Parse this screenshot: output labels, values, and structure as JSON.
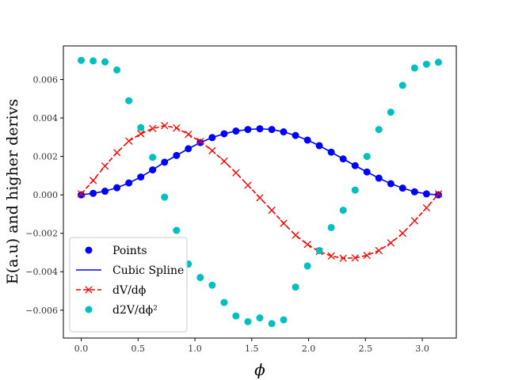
{
  "chart_data": {
    "type": "line",
    "title": "",
    "xlabel": "ϕ",
    "ylabel": "E(a.u) and higher derivs",
    "xlim": [
      -0.157,
      3.299
    ],
    "ylim": [
      -0.00745,
      0.00775
    ],
    "xticks": [
      0.0,
      0.5,
      1.0,
      1.5,
      2.0,
      2.5,
      3.0
    ],
    "xtick_labels": [
      "0.0",
      "0.5",
      "1.0",
      "1.5",
      "2.0",
      "2.5",
      "3.0"
    ],
    "yticks": [
      -0.006,
      -0.004,
      -0.002,
      0.0,
      0.002,
      0.004,
      0.006
    ],
    "ytick_labels": [
      "−0.006",
      "−0.004",
      "−0.002",
      "0.000",
      "0.002",
      "0.004",
      "0.006"
    ],
    "grid": false,
    "legend_position": "lower-left",
    "x": [
      0.0,
      0.105,
      0.209,
      0.314,
      0.419,
      0.524,
      0.628,
      0.733,
      0.838,
      0.942,
      1.047,
      1.152,
      1.257,
      1.361,
      1.466,
      1.571,
      1.676,
      1.78,
      1.885,
      1.99,
      2.094,
      2.199,
      2.304,
      2.409,
      2.513,
      2.618,
      2.723,
      2.827,
      2.932,
      3.037,
      3.142
    ],
    "series": [
      {
        "name": "Points",
        "kind": "markers",
        "marker": "circle",
        "color": "#0000ff",
        "values": [
          0.0,
          8e-05,
          0.00019,
          0.00037,
          0.00062,
          0.00093,
          0.0013,
          0.0017,
          0.00205,
          0.0024,
          0.00272,
          0.00298,
          0.00318,
          0.00332,
          0.0034,
          0.00344,
          0.0034,
          0.00328,
          0.00309,
          0.00285,
          0.00256,
          0.00222,
          0.00187,
          0.00152,
          0.00119,
          0.00087,
          0.00058,
          0.00035,
          0.00016,
          5e-05,
          0.0
        ]
      },
      {
        "name": "Cubic Spline",
        "kind": "line",
        "color": "#0000ff",
        "values": [
          0.0,
          8e-05,
          0.00019,
          0.00037,
          0.00062,
          0.00093,
          0.0013,
          0.0017,
          0.00205,
          0.0024,
          0.00272,
          0.00298,
          0.00318,
          0.00332,
          0.0034,
          0.00344,
          0.0034,
          0.00328,
          0.00309,
          0.00285,
          0.00256,
          0.00222,
          0.00187,
          0.00152,
          0.00119,
          0.00087,
          0.00058,
          0.00035,
          0.00016,
          5e-05,
          0.0
        ]
      },
      {
        "name": "dV/dϕ",
        "kind": "dashed-line-x",
        "color": "#ff0000",
        "values": [
          5e-05,
          0.00075,
          0.0015,
          0.0022,
          0.0028,
          0.00318,
          0.00345,
          0.0036,
          0.00348,
          0.00315,
          0.00278,
          0.0023,
          0.00175,
          0.00115,
          0.0005,
          -0.00015,
          -0.0008,
          -0.00148,
          -0.0021,
          -0.00258,
          -0.00295,
          -0.00318,
          -0.0033,
          -0.00328,
          -0.00315,
          -0.0029,
          -0.0025,
          -0.002,
          -0.00135,
          -0.00068,
          5e-05
        ]
      },
      {
        "name": "d2V/dϕ²",
        "kind": "markers",
        "marker": "circle",
        "color": "#00bfbf",
        "values": [
          0.007,
          0.00697,
          0.00692,
          0.0065,
          0.0049,
          0.0035,
          0.00195,
          -0.00012,
          -0.00185,
          -0.0036,
          -0.0043,
          -0.0047,
          -0.0056,
          -0.0063,
          -0.0066,
          -0.0064,
          -0.0067,
          -0.0065,
          -0.0048,
          -0.0037,
          -0.0029,
          -0.0017,
          -0.0008,
          0.00025,
          0.002,
          0.0034,
          0.0043,
          0.0057,
          0.0066,
          0.0068,
          0.0069
        ]
      }
    ]
  }
}
